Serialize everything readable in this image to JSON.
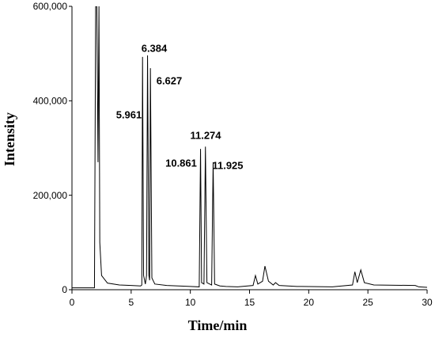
{
  "chart_data": {
    "type": "line",
    "xlabel": "Time/min",
    "ylabel": "Intensity",
    "x": [
      0,
      1.9,
      1.95,
      2.0,
      2.1,
      2.2,
      2.28,
      2.35,
      2.5,
      3,
      4,
      5,
      5.8,
      5.9,
      5.961,
      6.05,
      6.2,
      6.3,
      6.384,
      6.5,
      6.56,
      6.627,
      6.75,
      7,
      8,
      10,
      10.75,
      10.861,
      10.95,
      11.15,
      11.274,
      11.4,
      11.8,
      11.925,
      12.05,
      12.5,
      13,
      14,
      15.3,
      15.5,
      15.7,
      16.1,
      16.3,
      16.6,
      17,
      17.2,
      17.5,
      19,
      22,
      23.7,
      23.9,
      24.1,
      24.4,
      24.7,
      25.5,
      29,
      29.3,
      30
    ],
    "values": [
      4000,
      4000,
      300000,
      600000,
      600000,
      270000,
      600000,
      100000,
      30000,
      14000,
      10000,
      9000,
      8000,
      10000,
      493000,
      30000,
      12000,
      30000,
      496000,
      30000,
      20000,
      469000,
      25000,
      12000,
      9000,
      7000,
      6000,
      298000,
      15000,
      12000,
      303000,
      15000,
      10000,
      270000,
      12000,
      8000,
      7000,
      6000,
      9000,
      30000,
      12000,
      18000,
      50000,
      18000,
      10000,
      15000,
      9000,
      7000,
      6000,
      10000,
      38000,
      15000,
      42000,
      15000,
      10000,
      9000,
      6000,
      5000
    ],
    "color": "#000000",
    "xlim": [
      0,
      30
    ],
    "xticks": [
      0,
      5,
      10,
      15,
      20,
      25,
      30
    ],
    "ylim": [
      0,
      600000
    ],
    "yticks": [
      0,
      {
        "value": 200000,
        "label": "200,000"
      },
      {
        "value": 400000,
        "label": "400,000"
      },
      {
        "value": 600000,
        "label": "600,000"
      }
    ],
    "annotations": [
      "6.384",
      "6.627",
      "5.961",
      "11.274",
      "10.861",
      "11.925"
    ]
  }
}
